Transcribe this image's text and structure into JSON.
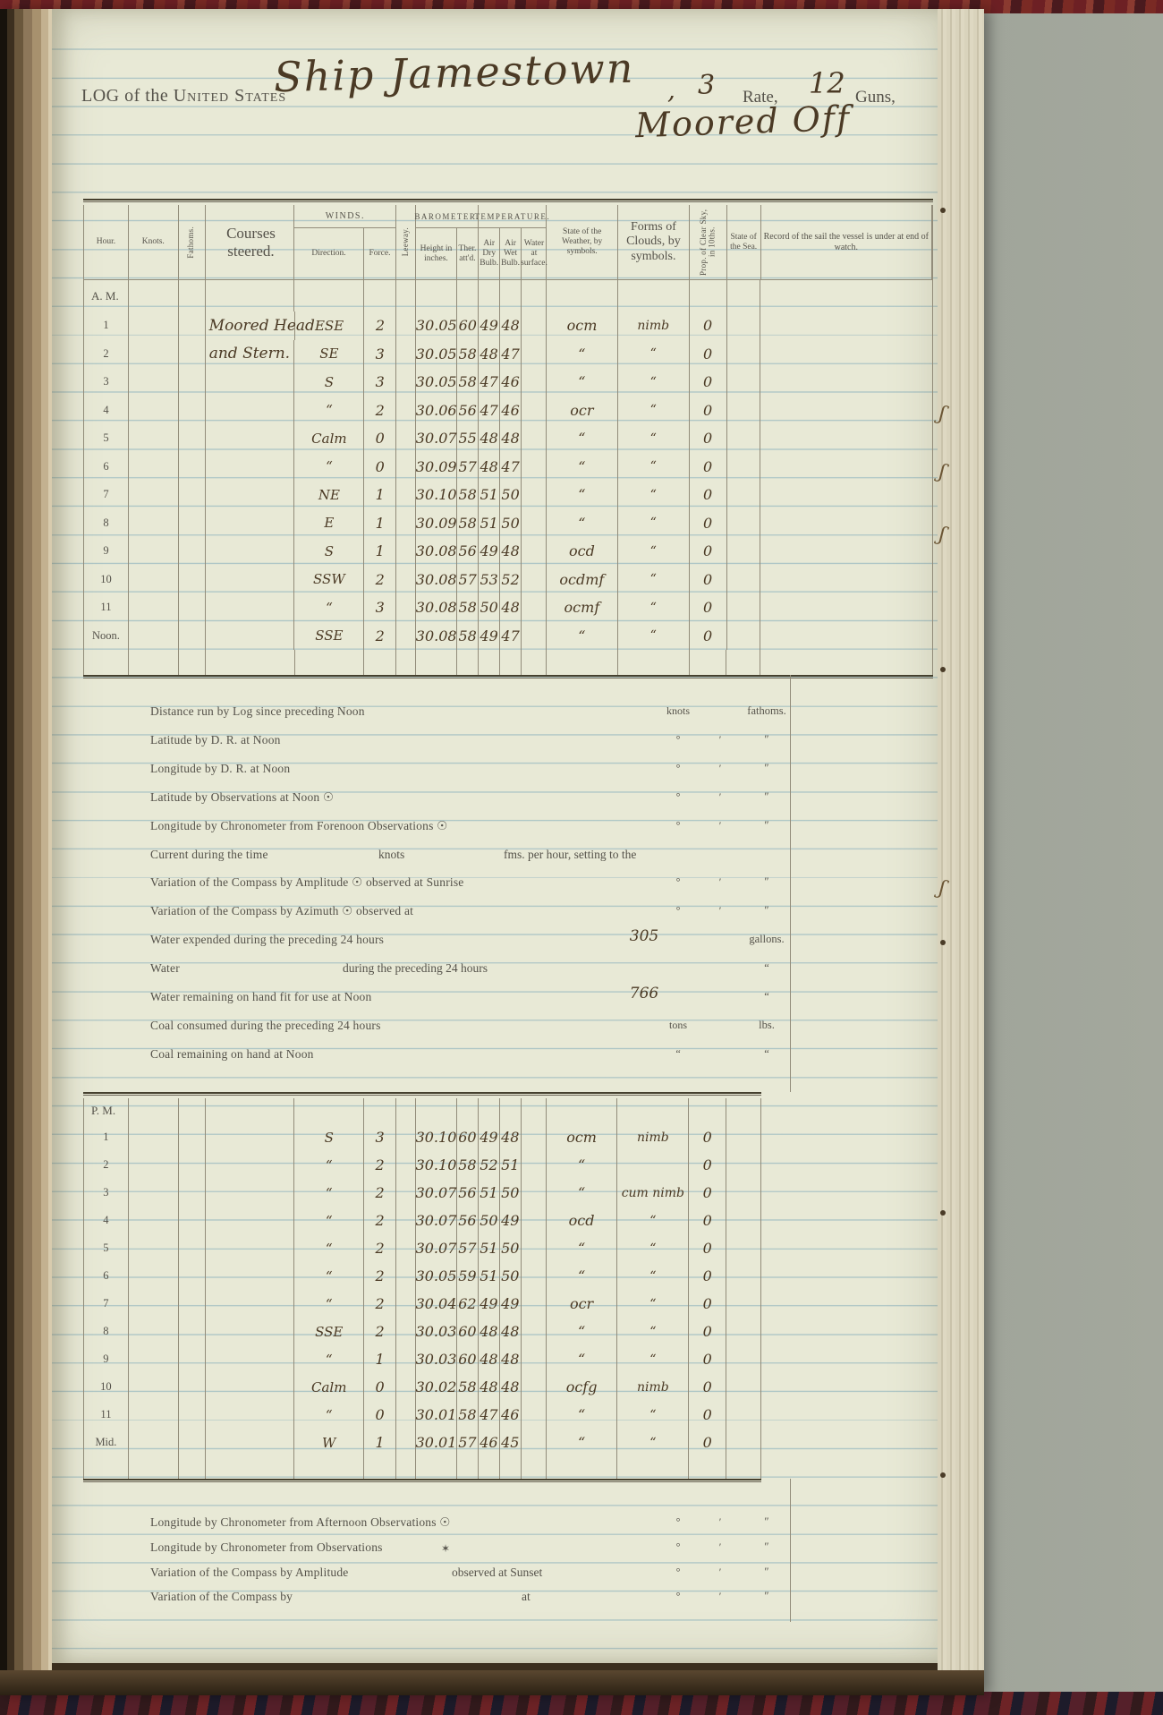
{
  "page_header": {
    "log_prefix": "LOG of the ",
    "nation": "United States",
    "ship_hw": "Ship Jamestown",
    "sep_hw": ",",
    "rate_hw": "3",
    "rate_label": "Rate,",
    "guns_hw": "12",
    "guns_label": "Guns,",
    "moored_hw": "Moored Off"
  },
  "colors": {
    "paper": "#e8e9d6",
    "ruled_line": "#aecbd5",
    "ink_handwriting": "#4b3a25",
    "ink_printed": "#55524a",
    "binding_brown": "#6a573c",
    "carpet_red": "#6d2024",
    "background_gray": "#9aa096"
  },
  "symbols": {
    "sun_icon": "☉",
    "star_icon": "✶",
    "ditto": "“",
    "degree": "°",
    "minute": "′",
    "second": "″"
  },
  "log_table": {
    "headers": {
      "hour": "Hour.",
      "knots": "Knots.",
      "fathoms": "Fathoms.",
      "courses": "Courses steered.",
      "winds": "WINDS.",
      "direction": "Direction.",
      "force": "Force.",
      "leeway": "Leeway.",
      "barometer": "BAROMETER.",
      "height": "Height in inches.",
      "ther": "Ther. att'd.",
      "temperature": "TEMPERATURE.",
      "dry": "Air Dry Bulb.",
      "wet": "Air Wet Bulb.",
      "water": "Water at surface.",
      "weather": "State of the Weather, by symbols.",
      "clouds": "Forms of Clouds, by symbols.",
      "sky": "Prop. of Clear Sky, in 10ths.",
      "sea": "State of the Sea.",
      "record": "Record of the sail the vessel is under at end of watch."
    },
    "am_label": "A. M.",
    "pm_label": "P. M.",
    "am_rows": [
      {
        "hour": "1",
        "course": "Moored Head",
        "direction": "ESE",
        "force": "2",
        "height": "30.05",
        "ther": "60",
        "dry": "49",
        "wet": "48",
        "weather": "ocm",
        "clouds": "nimb",
        "sky": "0"
      },
      {
        "hour": "2",
        "course": "and Stern.",
        "direction": "SE",
        "force": "3",
        "height": "30.05",
        "ther": "58",
        "dry": "48",
        "wet": "47",
        "weather": "“",
        "clouds": "“",
        "sky": "0"
      },
      {
        "hour": "3",
        "direction": "S",
        "force": "3",
        "height": "30.05",
        "ther": "58",
        "dry": "47",
        "wet": "46",
        "weather": "“",
        "clouds": "“",
        "sky": "0"
      },
      {
        "hour": "4",
        "direction": "“",
        "force": "2",
        "height": "30.06",
        "ther": "56",
        "dry": "47",
        "wet": "46",
        "weather": "ocr",
        "clouds": "“",
        "sky": "0"
      },
      {
        "hour": "5",
        "direction": "Calm",
        "force": "0",
        "height": "30.07",
        "ther": "55",
        "dry": "48",
        "wet": "48",
        "weather": "“",
        "clouds": "“",
        "sky": "0"
      },
      {
        "hour": "6",
        "direction": "“",
        "force": "0",
        "height": "30.09",
        "ther": "57",
        "dry": "48",
        "wet": "47",
        "weather": "“",
        "clouds": "“",
        "sky": "0"
      },
      {
        "hour": "7",
        "direction": "NE",
        "force": "1",
        "height": "30.10",
        "ther": "58",
        "dry": "51",
        "wet": "50",
        "weather": "“",
        "clouds": "“",
        "sky": "0"
      },
      {
        "hour": "8",
        "direction": "E",
        "force": "1",
        "height": "30.09",
        "ther": "58",
        "dry": "51",
        "wet": "50",
        "weather": "“",
        "clouds": "“",
        "sky": "0"
      },
      {
        "hour": "9",
        "direction": "S",
        "force": "1",
        "height": "30.08",
        "ther": "56",
        "dry": "49",
        "wet": "48",
        "weather": "ocd",
        "clouds": "“",
        "sky": "0"
      },
      {
        "hour": "10",
        "direction": "SSW",
        "force": "2",
        "height": "30.08",
        "ther": "57",
        "dry": "53",
        "wet": "52",
        "weather": "ocdmf",
        "clouds": "“",
        "sky": "0"
      },
      {
        "hour": "11",
        "direction": "“",
        "force": "3",
        "height": "30.08",
        "ther": "58",
        "dry": "50",
        "wet": "48",
        "weather": "ocmf",
        "clouds": "“",
        "sky": "0"
      },
      {
        "hour": "Noon.",
        "direction": "SSE",
        "force": "2",
        "height": "30.08",
        "ther": "58",
        "dry": "49",
        "wet": "47",
        "weather": "“",
        "clouds": "“",
        "sky": "0"
      }
    ],
    "pm_rows": [
      {
        "hour": "1",
        "direction": "S",
        "force": "3",
        "height": "30.10",
        "ther": "60",
        "dry": "49",
        "wet": "48",
        "weather": "ocm",
        "clouds": "nimb",
        "sky": "0"
      },
      {
        "hour": "2",
        "direction": "“",
        "force": "2",
        "height": "30.10",
        "ther": "58",
        "dry": "52",
        "wet": "51",
        "weather": "“",
        "clouds": "",
        "sky": "0"
      },
      {
        "hour": "3",
        "direction": "“",
        "force": "2",
        "height": "30.07",
        "ther": "56",
        "dry": "51",
        "wet": "50",
        "weather": "“",
        "clouds": "cum nimb",
        "sky": "0"
      },
      {
        "hour": "4",
        "direction": "“",
        "force": "2",
        "height": "30.07",
        "ther": "56",
        "dry": "50",
        "wet": "49",
        "weather": "ocd",
        "clouds": "“",
        "sky": "0"
      },
      {
        "hour": "5",
        "direction": "“",
        "force": "2",
        "height": "30.07",
        "ther": "57",
        "dry": "51",
        "wet": "50",
        "weather": "“",
        "clouds": "“",
        "sky": "0"
      },
      {
        "hour": "6",
        "direction": "“",
        "force": "2",
        "height": "30.05",
        "ther": "59",
        "dry": "51",
        "wet": "50",
        "weather": "“",
        "clouds": "“",
        "sky": "0"
      },
      {
        "hour": "7",
        "direction": "“",
        "force": "2",
        "height": "30.04",
        "ther": "62",
        "dry": "49",
        "wet": "49",
        "weather": "ocr",
        "clouds": "“",
        "sky": "0"
      },
      {
        "hour": "8",
        "direction": "SSE",
        "force": "2",
        "height": "30.03",
        "ther": "60",
        "dry": "48",
        "wet": "48",
        "weather": "“",
        "clouds": "“",
        "sky": "0"
      },
      {
        "hour": "9",
        "direction": "“",
        "force": "1",
        "height": "30.03",
        "ther": "60",
        "dry": "48",
        "wet": "48",
        "weather": "“",
        "clouds": "“",
        "sky": "0"
      },
      {
        "hour": "10",
        "direction": "Calm",
        "force": "0",
        "height": "30.02",
        "ther": "58",
        "dry": "48",
        "wet": "48",
        "weather": "ocfg",
        "clouds": "nimb",
        "sky": "0"
      },
      {
        "hour": "11",
        "direction": "“",
        "force": "0",
        "height": "30.01",
        "ther": "58",
        "dry": "47",
        "wet": "46",
        "weather": "“",
        "clouds": "“",
        "sky": "0"
      },
      {
        "hour": "Mid.",
        "direction": "W",
        "force": "1",
        "height": "30.01",
        "ther": "57",
        "dry": "46",
        "wet": "45",
        "weather": "“",
        "clouds": "“",
        "sky": "0"
      }
    ]
  },
  "noon_summary": {
    "rows": [
      {
        "label": "Distance run by Log since preceding Noon",
        "a": "knots",
        "c": "fathoms."
      },
      {
        "label": "Latitude by D. R. at Noon",
        "a": "°",
        "b": "′",
        "c": "″"
      },
      {
        "label": "Longitude by D. R. at Noon",
        "a": "°",
        "b": "′",
        "c": "″"
      },
      {
        "label": "Latitude by Observations at Noon ☉",
        "a": "°",
        "b": "′",
        "c": "″"
      },
      {
        "label": "Longitude by Chronometer from Forenoon Observations ☉",
        "a": "°",
        "b": "′",
        "c": "″"
      },
      {
        "label": "Current during the time",
        "variant": "current",
        "m1": "knots",
        "m2": "fms. per hour, setting to the"
      },
      {
        "label": "Variation of the Compass by Amplitude ☉ observed at Sunrise",
        "a": "°",
        "b": "′",
        "c": "″"
      },
      {
        "label": "Variation of the Compass by Azimuth ☉ observed at",
        "a": "°",
        "b": "′",
        "c": "″"
      },
      {
        "label": "Water expended during the preceding 24 hours",
        "hw": "305",
        "c": "gallons."
      },
      {
        "label": "Water",
        "variant": "water-blank",
        "m2": "during the preceding 24 hours",
        "c": "“"
      },
      {
        "label": "Water remaining on hand fit for use at Noon",
        "hw": "766",
        "c": "“"
      },
      {
        "label": "Coal consumed during the preceding 24 hours",
        "a": "tons",
        "c": "lbs."
      },
      {
        "label": "Coal remaining on hand at Noon",
        "a": "“",
        "c": "“"
      }
    ]
  },
  "afternoon_summary": {
    "rows": [
      {
        "label": "Longitude by Chronometer from Afternoon Observations ☉",
        "a": "°",
        "b": "′",
        "c": "″"
      },
      {
        "label": "Longitude by Chronometer from Observations",
        "variant": "star",
        "m1": "✶",
        "a": "°",
        "b": "′",
        "c": "″"
      },
      {
        "label": "Variation of the Compass by Amplitude",
        "variant": "sunset",
        "m1": "observed at Sunset",
        "a": "°",
        "b": "′",
        "c": "″"
      },
      {
        "label": "Variation of the Compass by",
        "variant": "by-at",
        "m1": "at",
        "a": "°",
        "b": "′",
        "c": "″"
      }
    ]
  }
}
